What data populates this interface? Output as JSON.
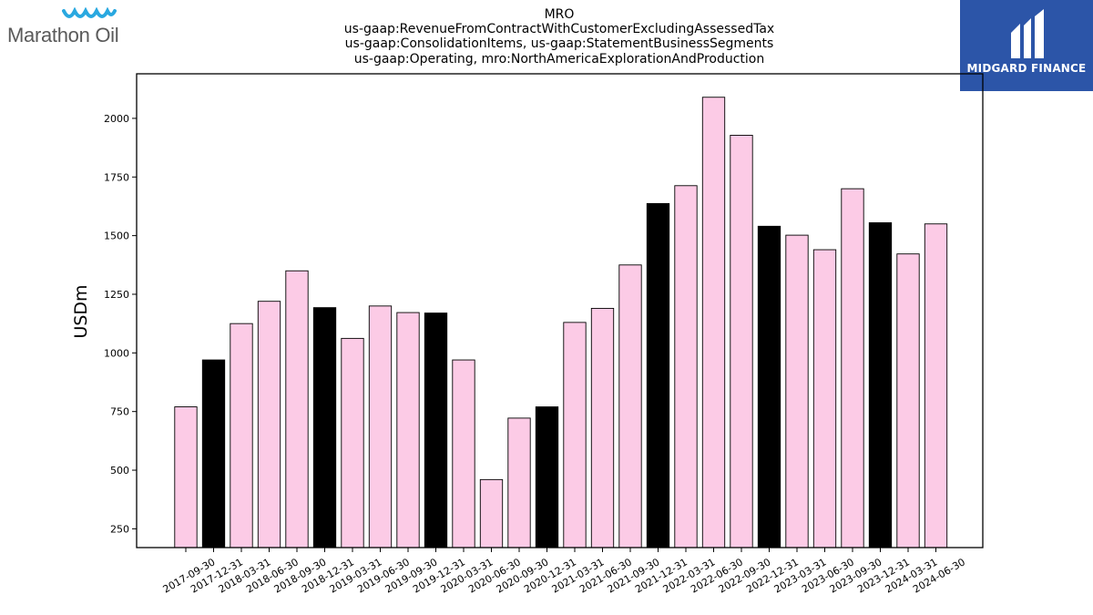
{
  "header": {
    "company_logo_text": "Marathon Oil",
    "brand_logo_text": "MIDGARD FINANCE"
  },
  "colors": {
    "quarter_bar": "#fccbe6",
    "year_end_bar": "#000000",
    "bar_edge": "#000000",
    "brand_blue": "#2c55a8",
    "logo_wave": "#29a8e0"
  },
  "chart_data": {
    "type": "bar",
    "title": "MRO",
    "subtitle": [
      "us-gaap:RevenueFromContractWithCustomerExcludingAssessedTax",
      "us-gaap:ConsolidationItems, us-gaap:StatementBusinessSegments",
      "us-gaap:Operating, mro:NorthAmericaExplorationAndProduction"
    ],
    "xlabel": "",
    "ylabel": "USDm",
    "ylim": [
      170,
      2190
    ],
    "yticks": [
      250,
      500,
      750,
      1000,
      1250,
      1500,
      1750,
      2000
    ],
    "grid": false,
    "legend": "none",
    "categories": [
      "2017-09-30",
      "2017-12-31",
      "2018-03-31",
      "2018-06-30",
      "2018-09-30",
      "2018-12-31",
      "2019-03-31",
      "2019-06-30",
      "2019-09-30",
      "2019-12-31",
      "2020-03-31",
      "2020-06-30",
      "2020-09-30",
      "2020-12-31",
      "2021-03-31",
      "2021-06-30",
      "2021-09-30",
      "2021-12-31",
      "2022-03-31",
      "2022-06-30",
      "2022-09-30",
      "2022-12-31",
      "2023-03-31",
      "2023-06-30",
      "2023-09-30",
      "2023-12-31",
      "2024-03-31",
      "2024-06-30"
    ],
    "values": [
      770,
      970,
      1125,
      1220,
      1350,
      1193,
      1062,
      1200,
      1172,
      1170,
      970,
      460,
      722,
      770,
      1130,
      1190,
      1375,
      1637,
      1713,
      2090,
      1928,
      1540,
      1502,
      1440,
      1700,
      1555,
      1422,
      1550
    ],
    "year_end": [
      false,
      true,
      false,
      false,
      false,
      true,
      false,
      false,
      false,
      true,
      false,
      false,
      false,
      true,
      false,
      false,
      false,
      true,
      false,
      false,
      false,
      true,
      false,
      false,
      false,
      true,
      false,
      false
    ]
  }
}
